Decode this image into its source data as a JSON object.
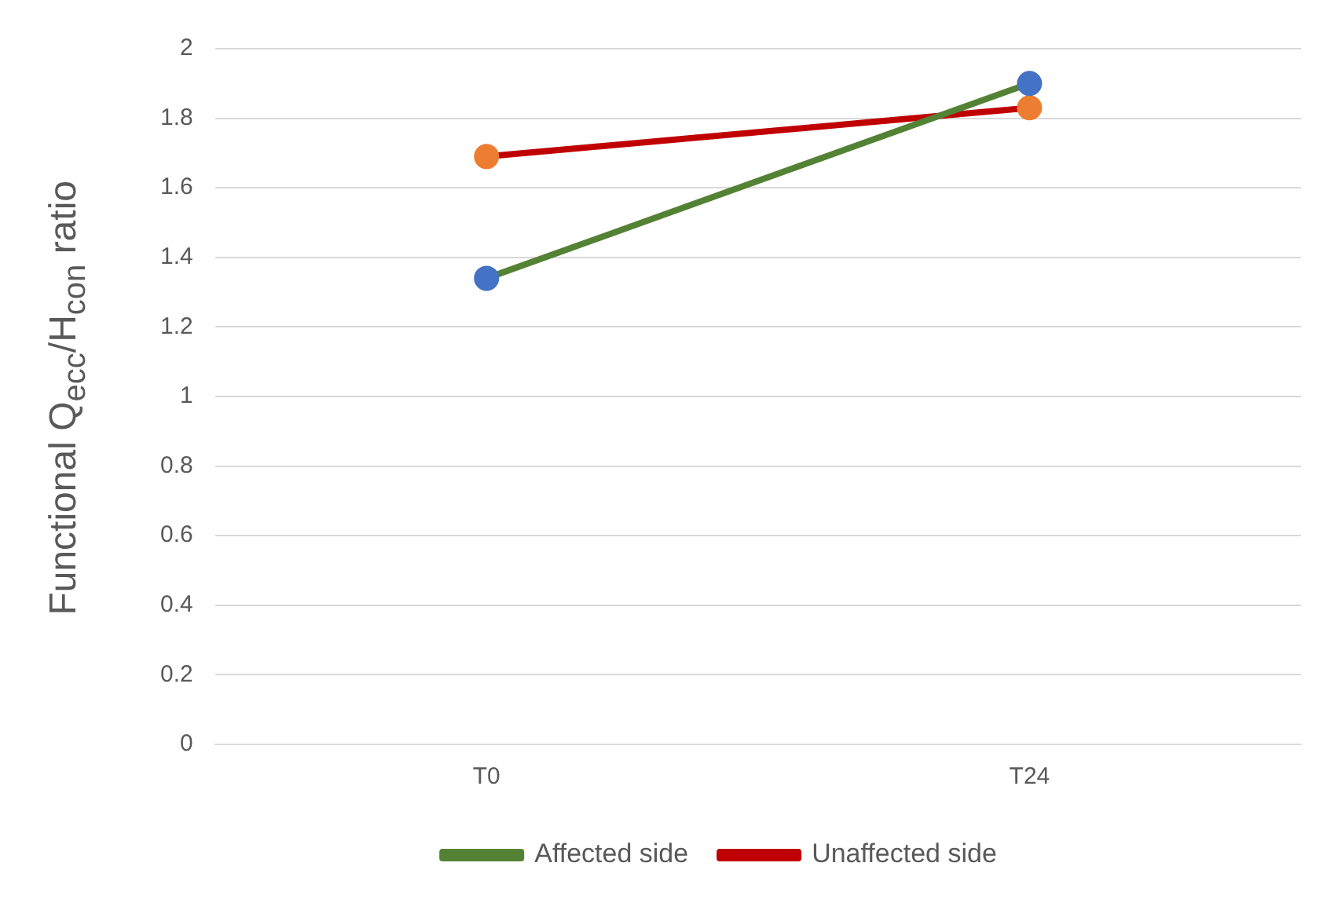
{
  "chart_data": {
    "type": "line",
    "ylabel": "Functional Q$_{ecc}$/H$_{con}$ ratio",
    "categories": [
      "T0",
      "T24"
    ],
    "series": [
      {
        "name": "Affected side",
        "color": "#548235",
        "colors": [
          "#4472c4",
          "#4472c4"
        ],
        "values": [
          1.34,
          1.9
        ]
      },
      {
        "name": "Unaffected side",
        "color": "#c00000",
        "colors": [
          "#ed7d31",
          "#ed7d31"
        ],
        "values": [
          1.69,
          1.83
        ]
      }
    ],
    "ylim": [
      0,
      2
    ],
    "yticks": [
      0,
      0.2,
      0.4,
      0.6,
      0.8,
      1,
      1.2,
      1.4,
      1.6,
      1.8,
      2
    ],
    "grid": "y",
    "legend": "bottom",
    "marker": "circle",
    "line_style": "solid"
  }
}
